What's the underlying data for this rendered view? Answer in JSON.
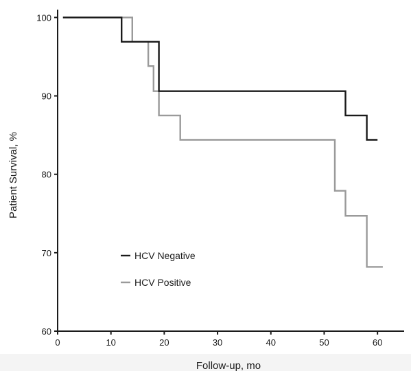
{
  "chart_data": {
    "type": "line",
    "step": true,
    "title": "",
    "xlabel": "Follow-up, mo",
    "ylabel": "Patient Survival, %",
    "xlim": [
      0,
      65
    ],
    "ylim": [
      60,
      101
    ],
    "x_ticks": [
      0,
      10,
      20,
      30,
      40,
      50,
      60
    ],
    "y_ticks": [
      60,
      70,
      80,
      90,
      100
    ],
    "x_tick_labels": [
      "0",
      "10",
      "20",
      "30",
      "40",
      "50",
      "60"
    ],
    "y_tick_labels": [
      "60",
      "70",
      "80",
      "90",
      "100"
    ],
    "grid": false,
    "legend_position": "bottom-left",
    "series": [
      {
        "name": "HCV Negative",
        "color": "#1a1a1a",
        "points": [
          [
            1,
            100
          ],
          [
            12,
            100
          ],
          [
            12,
            96.9
          ],
          [
            19,
            96.9
          ],
          [
            19,
            90.6
          ],
          [
            54,
            90.6
          ],
          [
            54,
            87.5
          ],
          [
            58,
            87.5
          ],
          [
            58,
            84.4
          ],
          [
            60,
            84.4
          ]
        ]
      },
      {
        "name": "HCV Positive",
        "color": "#9a9a9a",
        "points": [
          [
            1,
            100
          ],
          [
            14,
            100
          ],
          [
            14,
            96.9
          ],
          [
            17,
            96.9
          ],
          [
            17,
            93.8
          ],
          [
            18,
            93.8
          ],
          [
            18,
            90.6
          ],
          [
            19,
            90.6
          ],
          [
            19,
            87.5
          ],
          [
            23,
            87.5
          ],
          [
            23,
            84.4
          ],
          [
            52,
            84.4
          ],
          [
            52,
            77.9
          ],
          [
            54,
            77.9
          ],
          [
            54,
            74.7
          ],
          [
            58,
            74.7
          ],
          [
            58,
            68.2
          ],
          [
            61,
            68.2
          ]
        ]
      }
    ]
  }
}
